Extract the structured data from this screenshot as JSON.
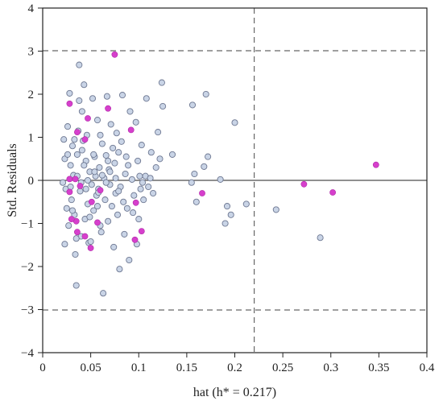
{
  "chart_data": {
    "type": "scatter",
    "title": "",
    "xlabel": "hat (h* = 0.217)",
    "ylabel": "Std. Residuals",
    "xlim": [
      0,
      0.4
    ],
    "ylim": [
      -4,
      4
    ],
    "x_ticks": [
      "0",
      "0.05",
      "0.1",
      "0.15",
      "0.2",
      "0.25",
      "0.3",
      "0.35",
      "0.4"
    ],
    "y_ticks": [
      "4",
      "3",
      "2",
      "1",
      "0",
      "−1",
      "−2",
      "−3",
      "−4"
    ],
    "reference_lines": {
      "hat_threshold": 0.217,
      "residual_limits": [
        3,
        -3
      ],
      "zero": 0
    },
    "colors": {
      "training_fill": "#c9d4e6",
      "training_edge": "#6e7892",
      "test_fill": "#d63fcc"
    },
    "series": [
      {
        "values": [
          [
            0.022,
            0.95
          ],
          [
            0.026,
            1.25
          ],
          [
            0.028,
            2.02
          ],
          [
            0.023,
            0.5
          ],
          [
            0.021,
            -0.05
          ],
          [
            0.024,
            -0.2
          ],
          [
            0.025,
            -0.65
          ],
          [
            0.023,
            -1.48
          ],
          [
            0.027,
            -1.05
          ],
          [
            0.029,
            0.35
          ],
          [
            0.03,
            -0.45
          ],
          [
            0.031,
            0.8
          ],
          [
            0.032,
            0.12
          ],
          [
            0.033,
            -0.8
          ],
          [
            0.034,
            -1.72
          ],
          [
            0.035,
            -2.44
          ],
          [
            0.036,
            0.6
          ],
          [
            0.037,
            1.15
          ],
          [
            0.038,
            2.68
          ],
          [
            0.039,
            -0.25
          ],
          [
            0.04,
            -1.3
          ],
          [
            0.041,
            1.6
          ],
          [
            0.042,
            0.92
          ],
          [
            0.043,
            2.22
          ],
          [
            0.044,
            -0.9
          ],
          [
            0.045,
            0.45
          ],
          [
            0.046,
            1.05
          ],
          [
            0.047,
            -0.55
          ],
          [
            0.048,
            -1.45
          ],
          [
            0.049,
            0.2
          ],
          [
            0.05,
            -1.42
          ],
          [
            0.052,
            1.9
          ],
          [
            0.053,
            -0.7
          ],
          [
            0.054,
            0.55
          ],
          [
            0.055,
            0.1
          ],
          [
            0.056,
            -0.35
          ],
          [
            0.057,
            1.4
          ],
          [
            0.058,
            -0.2
          ],
          [
            0.059,
            0.3
          ],
          [
            0.06,
            1.05
          ],
          [
            0.061,
            -1.2
          ],
          [
            0.062,
            0.85
          ],
          [
            0.063,
            -2.62
          ],
          [
            0.064,
            0.05
          ],
          [
            0.065,
            -0.45
          ],
          [
            0.066,
            0.58
          ],
          [
            0.067,
            1.95
          ],
          [
            0.068,
            -0.95
          ],
          [
            0.069,
            0.25
          ],
          [
            0.07,
            -0.1
          ],
          [
            0.071,
            1.3
          ],
          [
            0.072,
            -0.6
          ],
          [
            0.073,
            0.75
          ],
          [
            0.074,
            -1.55
          ],
          [
            0.075,
            0.4
          ],
          [
            0.076,
            -0.3
          ],
          [
            0.077,
            1.1
          ],
          [
            0.078,
            -0.8
          ],
          [
            0.079,
            0.65
          ],
          [
            0.08,
            -2.06
          ],
          [
            0.081,
            -0.15
          ],
          [
            0.082,
            0.9
          ],
          [
            0.083,
            1.98
          ],
          [
            0.084,
            -0.5
          ],
          [
            0.085,
            -1.25
          ],
          [
            0.086,
            0.15
          ],
          [
            0.087,
            0.55
          ],
          [
            0.088,
            -0.65
          ],
          [
            0.09,
            -1.85
          ],
          [
            0.091,
            1.6
          ],
          [
            0.093,
            0.02
          ],
          [
            0.095,
            -0.35
          ],
          [
            0.097,
            1.35
          ],
          [
            0.098,
            -1.48
          ],
          [
            0.1,
            -0.9
          ],
          [
            0.101,
            0.1
          ],
          [
            0.102,
            -0.2
          ],
          [
            0.103,
            0.82
          ],
          [
            0.105,
            -0.45
          ],
          [
            0.107,
            0.1
          ],
          [
            0.108,
            1.9
          ],
          [
            0.11,
            -0.15
          ],
          [
            0.112,
            0.05
          ],
          [
            0.115,
            -0.3
          ],
          [
            0.118,
            0.3
          ],
          [
            0.12,
            1.12
          ],
          [
            0.122,
            0.5
          ],
          [
            0.124,
            2.27
          ],
          [
            0.125,
            1.72
          ],
          [
            0.135,
            0.6
          ],
          [
            0.156,
            1.75
          ],
          [
            0.155,
            -0.05
          ],
          [
            0.158,
            0.15
          ],
          [
            0.16,
            -0.5
          ],
          [
            0.168,
            0.32
          ],
          [
            0.17,
            2.0
          ],
          [
            0.172,
            0.55
          ],
          [
            0.185,
            0.02
          ],
          [
            0.19,
            -1.0
          ],
          [
            0.192,
            -0.6
          ],
          [
            0.196,
            -0.8
          ],
          [
            0.2,
            1.34
          ],
          [
            0.212,
            -0.55
          ],
          [
            0.243,
            -0.68
          ],
          [
            0.289,
            -1.33
          ],
          [
            0.036,
            0.1
          ],
          [
            0.04,
            -0.05
          ],
          [
            0.043,
            0.35
          ],
          [
            0.047,
            0.0
          ],
          [
            0.051,
            -0.1
          ],
          [
            0.054,
            0.2
          ],
          [
            0.058,
            -0.28
          ],
          [
            0.062,
            0.12
          ],
          [
            0.066,
            -0.05
          ],
          [
            0.07,
            0.2
          ],
          [
            0.033,
            0.95
          ],
          [
            0.031,
            -0.7
          ],
          [
            0.029,
            -0.15
          ],
          [
            0.026,
            0.6
          ],
          [
            0.035,
            -1.35
          ],
          [
            0.038,
            1.85
          ],
          [
            0.049,
            -0.85
          ],
          [
            0.057,
            -0.6
          ],
          [
            0.076,
            0.05
          ],
          [
            0.089,
            0.35
          ],
          [
            0.094,
            -0.75
          ],
          [
            0.099,
            0.45
          ],
          [
            0.104,
            -0.05
          ],
          [
            0.113,
            0.65
          ],
          [
            0.06,
            -1.05
          ],
          [
            0.045,
            -0.2
          ],
          [
            0.041,
            0.7
          ],
          [
            0.053,
            0.6
          ],
          [
            0.068,
            0.45
          ],
          [
            0.079,
            -0.25
          ]
        ]
      },
      {
        "values": [
          [
            0.028,
            1.78
          ],
          [
            0.036,
            1.12
          ],
          [
            0.044,
            0.95
          ],
          [
            0.047,
            1.44
          ],
          [
            0.068,
            1.67
          ],
          [
            0.075,
            2.92
          ],
          [
            0.092,
            1.17
          ],
          [
            0.028,
            0.03
          ],
          [
            0.034,
            0.03
          ],
          [
            0.039,
            -0.13
          ],
          [
            0.028,
            -0.27
          ],
          [
            0.051,
            -0.5
          ],
          [
            0.06,
            -0.23
          ],
          [
            0.035,
            -0.95
          ],
          [
            0.057,
            -0.98
          ],
          [
            0.03,
            -0.9
          ],
          [
            0.036,
            -1.2
          ],
          [
            0.044,
            -1.3
          ],
          [
            0.05,
            -1.57
          ],
          [
            0.096,
            -1.38
          ],
          [
            0.103,
            -1.18
          ],
          [
            0.097,
            -0.52
          ],
          [
            0.166,
            -0.3
          ],
          [
            0.272,
            -0.09
          ],
          [
            0.302,
            -0.28
          ],
          [
            0.347,
            0.36
          ]
        ]
      }
    ]
  }
}
